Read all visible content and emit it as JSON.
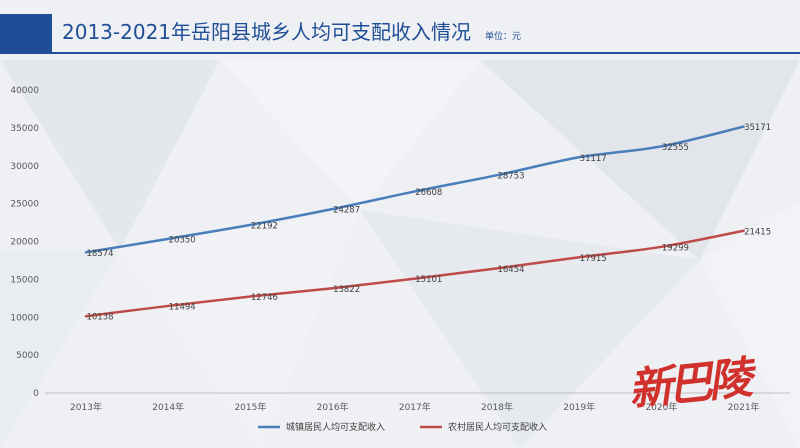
{
  "header": {
    "title": "2013-2021年岳阳县城乡人均可支配收入情况",
    "unit": "单位：元"
  },
  "watermark": {
    "text": "新巴陵"
  },
  "chart_data": {
    "type": "line",
    "title": "2013-2021年岳阳县城乡人均可支配收入情况",
    "xlabel": "",
    "ylabel": "",
    "categories": [
      "2013年",
      "2014年",
      "2015年",
      "2016年",
      "2017年",
      "2018年",
      "2019年",
      "2020年",
      "2021年"
    ],
    "ylim": [
      0,
      40000
    ],
    "yticks": [
      0,
      5000,
      10000,
      15000,
      20000,
      25000,
      30000,
      35000,
      40000
    ],
    "grid": false,
    "legend": "bottom",
    "series": [
      {
        "name": "城镇居民人均可支配收入",
        "color": "#4a7ebb",
        "values": [
          18574,
          20350,
          22192,
          24287,
          26608,
          28753,
          31117,
          32555,
          35171
        ]
      },
      {
        "name": "农村居民人均可支配收入",
        "color": "#be4b48",
        "values": [
          10138,
          11494,
          12746,
          13822,
          15101,
          16454,
          17915,
          19299,
          21415
        ]
      }
    ]
  }
}
